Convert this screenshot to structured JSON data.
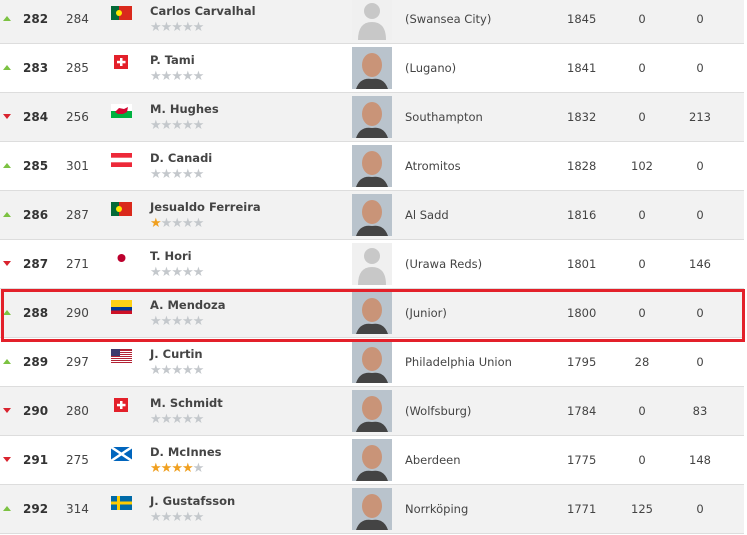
{
  "colors": {
    "up": "#7cc242",
    "down": "#d9232e",
    "highlight": "#e3202a",
    "star_on": "#f0a020",
    "star_off": "#c4c8cc"
  },
  "rows": [
    {
      "trend": "up",
      "rank": "282",
      "prev": "284",
      "flag": "portugal",
      "name": "Carlos Carvalhal",
      "stars": 0,
      "photo": "placeholder",
      "club": "(Swansea City)",
      "points": "1845",
      "c1": "0",
      "c2": "0"
    },
    {
      "trend": "up",
      "rank": "283",
      "prev": "285",
      "flag": "switzerland",
      "name": "P. Tami",
      "stars": 0,
      "photo": "face",
      "club": "(Lugano)",
      "points": "1841",
      "c1": "0",
      "c2": "0"
    },
    {
      "trend": "down",
      "rank": "284",
      "prev": "256",
      "flag": "wales",
      "name": "M. Hughes",
      "stars": 0,
      "photo": "face",
      "club": "Southampton",
      "points": "1832",
      "c1": "0",
      "c2": "213"
    },
    {
      "trend": "up",
      "rank": "285",
      "prev": "301",
      "flag": "austria",
      "name": "D. Canadi",
      "stars": 0,
      "photo": "face",
      "club": "Atromitos",
      "points": "1828",
      "c1": "102",
      "c2": "0"
    },
    {
      "trend": "up",
      "rank": "286",
      "prev": "287",
      "flag": "portugal",
      "name": "Jesualdo Ferreira",
      "stars": 1,
      "photo": "face",
      "club": "Al Sadd",
      "points": "1816",
      "c1": "0",
      "c2": "0"
    },
    {
      "trend": "down",
      "rank": "287",
      "prev": "271",
      "flag": "japan",
      "name": "T. Hori",
      "stars": 0,
      "photo": "placeholder",
      "club": "(Urawa Reds)",
      "points": "1801",
      "c1": "0",
      "c2": "146"
    },
    {
      "trend": "up",
      "rank": "288",
      "prev": "290",
      "flag": "colombia",
      "name": "A. Mendoza",
      "stars": 0,
      "photo": "face",
      "club": "(Junior)",
      "points": "1800",
      "c1": "0",
      "c2": "0"
    },
    {
      "trend": "up",
      "rank": "289",
      "prev": "297",
      "flag": "usa",
      "name": "J. Curtin",
      "stars": 0,
      "photo": "face",
      "club": "Philadelphia Union",
      "points": "1795",
      "c1": "28",
      "c2": "0"
    },
    {
      "trend": "down",
      "rank": "290",
      "prev": "280",
      "flag": "switzerland",
      "name": "M. Schmidt",
      "stars": 0,
      "photo": "face",
      "club": "(Wolfsburg)",
      "points": "1784",
      "c1": "0",
      "c2": "83"
    },
    {
      "trend": "down",
      "rank": "291",
      "prev": "275",
      "flag": "scotland",
      "name": "D. McInnes",
      "stars": 4,
      "photo": "face",
      "club": "Aberdeen",
      "points": "1775",
      "c1": "0",
      "c2": "148"
    },
    {
      "trend": "up",
      "rank": "292",
      "prev": "314",
      "flag": "sweden",
      "name": "J. Gustafsson",
      "stars": 0,
      "photo": "face",
      "club": "Norrköping",
      "points": "1771",
      "c1": "125",
      "c2": "0"
    }
  ]
}
